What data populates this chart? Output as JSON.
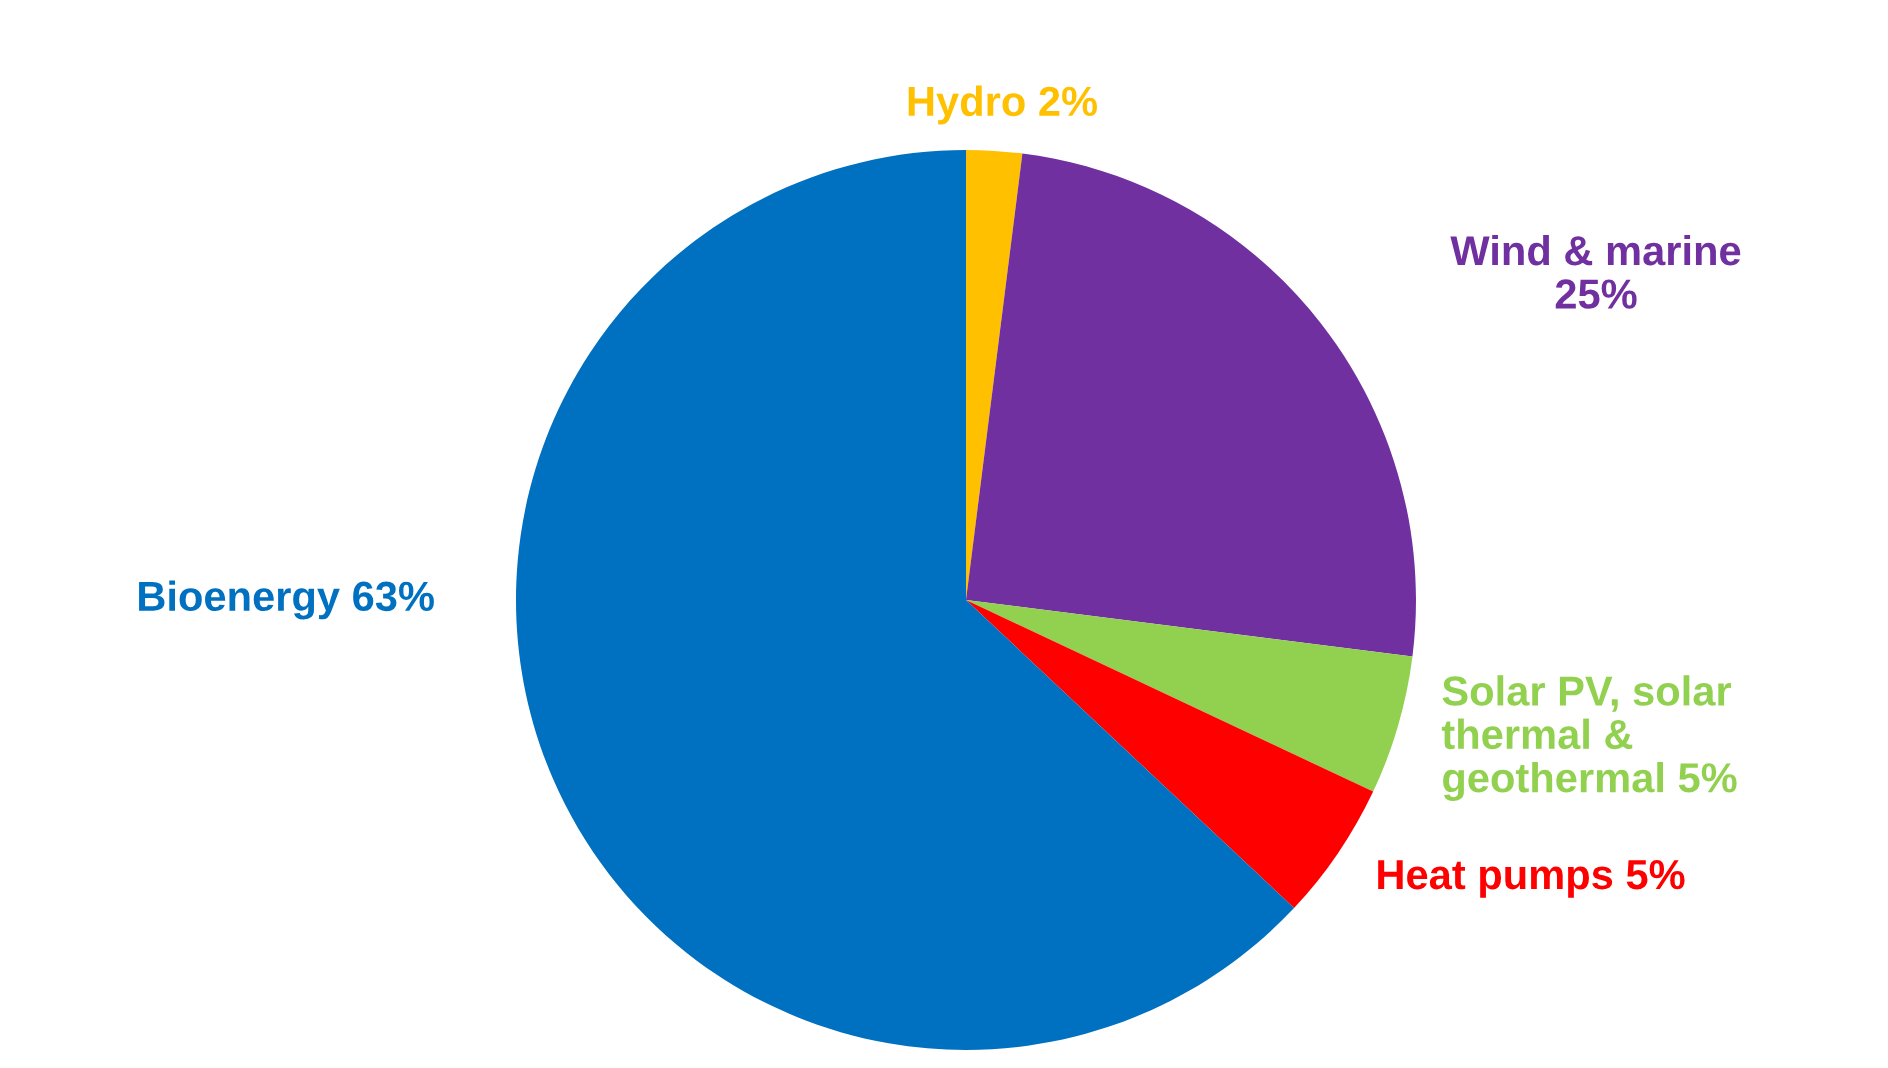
{
  "chart_data": {
    "type": "pie",
    "categories": [
      "Hydro",
      "Wind & marine",
      "Solar PV, solar\nthermal &\ngeothermal",
      "Heat pumps",
      "Bioenergy"
    ],
    "values": [
      2,
      25,
      5,
      5,
      63
    ],
    "colors": [
      "#ffc000",
      "#7030a0",
      "#92d050",
      "#ff0000",
      "#0070c0"
    ],
    "value_labels": [
      "2%",
      "25%",
      "5%",
      "5%",
      "63%"
    ]
  }
}
